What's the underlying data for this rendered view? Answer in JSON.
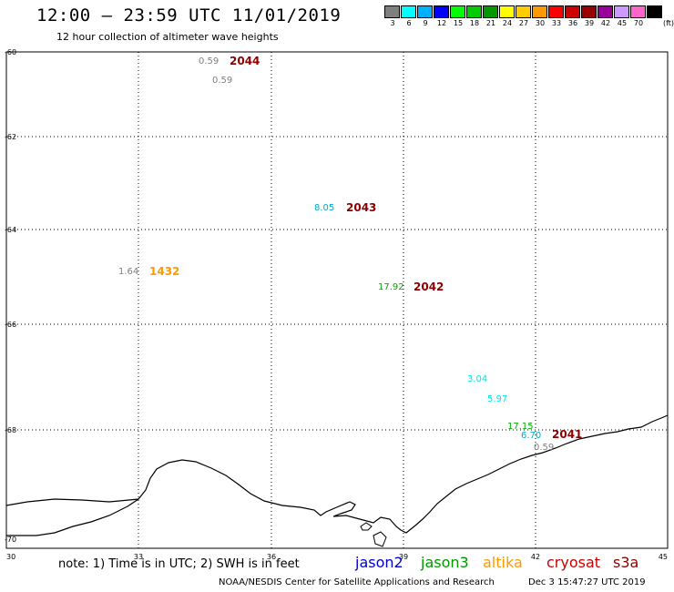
{
  "header": {
    "title": "12:00 — 23:59 UTC 11/01/2019",
    "subtitle": "12 hour collection of altimeter wave heights"
  },
  "legend": {
    "swatches": [
      {
        "label": "3",
        "color": "#7f7f7f"
      },
      {
        "label": "6",
        "color": "#00ffff"
      },
      {
        "label": "9",
        "color": "#00b0ff"
      },
      {
        "label": "12",
        "color": "#0000ff"
      },
      {
        "label": "15",
        "color": "#00ff00"
      },
      {
        "label": "18",
        "color": "#00cc00"
      },
      {
        "label": "21",
        "color": "#009900"
      },
      {
        "label": "24",
        "color": "#ffff00"
      },
      {
        "label": "27",
        "color": "#ffcc00"
      },
      {
        "label": "30",
        "color": "#ff9900"
      },
      {
        "label": "33",
        "color": "#ff0000"
      },
      {
        "label": "36",
        "color": "#cc0000"
      },
      {
        "label": "39",
        "color": "#990000"
      },
      {
        "label": "42",
        "color": "#990099"
      },
      {
        "label": "45",
        "color": "#cc99ff"
      },
      {
        "label": "70",
        "color": "#ff66cc"
      },
      {
        "label": "",
        "color": "#000000"
      }
    ],
    "unit": "(ft)"
  },
  "axes": {
    "lon_ticks": [
      "30",
      "33",
      "36",
      "39",
      "42",
      "45"
    ],
    "lat_ticks": [
      "-60",
      "-62",
      "-64",
      "-66",
      "-68",
      "-70"
    ]
  },
  "observations": [
    {
      "text": "0.59",
      "color": "#808080"
    },
    {
      "text": "2044",
      "color": "#8b0000"
    },
    {
      "text": "0.59",
      "color": "#808080"
    },
    {
      "text": "8.05",
      "color": "#00aacc"
    },
    {
      "text": "2043",
      "color": "#8b0000"
    },
    {
      "text": "1.64",
      "color": "#808080"
    },
    {
      "text": "1432",
      "color": "#ff9900"
    },
    {
      "text": "17.92",
      "color": "#00aa00"
    },
    {
      "text": "2042",
      "color": "#8b0000"
    },
    {
      "text": "3.04",
      "color": "#00e5e5"
    },
    {
      "text": "5.97",
      "color": "#00e5e5"
    },
    {
      "text": "17.15",
      "color": "#00aa00"
    },
    {
      "text": "6.70",
      "color": "#00aacc"
    },
    {
      "text": "2041",
      "color": "#8b0000"
    },
    {
      "text": "0.59",
      "color": "#808080"
    }
  ],
  "footer": {
    "note": "note: 1) Time is in UTC; 2) SWH is in feet",
    "satellites": [
      {
        "name": "jason2",
        "color": "#0000cc"
      },
      {
        "name": "jason3",
        "color": "#009900"
      },
      {
        "name": "altika",
        "color": "#ff9900"
      },
      {
        "name": "cryosat",
        "color": "#cc0000"
      },
      {
        "name": "s3a",
        "color": "#8b0000"
      }
    ],
    "credit": "NOAA/NESDIS Center for Satellite Applications and Research",
    "timestamp": "Dec  3 15:47:27 UTC 2019"
  }
}
